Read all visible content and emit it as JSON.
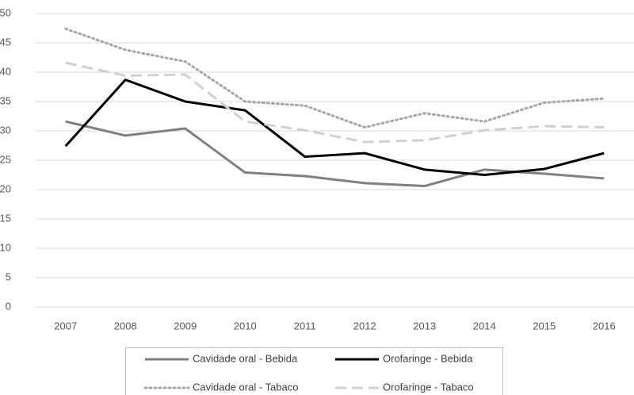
{
  "chart_data": {
    "type": "line",
    "categories": [
      "2007",
      "2008",
      "2009",
      "2010",
      "2011",
      "2012",
      "2013",
      "2014",
      "2015",
      "2016"
    ],
    "series": [
      {
        "name": "Cavidade oral - Bebida",
        "color": "#808080",
        "dash": "solid",
        "values": [
          31.6,
          29.2,
          30.4,
          22.9,
          22.3,
          21.1,
          20.6,
          23.4,
          22.7,
          21.9
        ]
      },
      {
        "name": "Orofaringe - Bebida",
        "color": "#000000",
        "dash": "solid",
        "values": [
          27.4,
          38.7,
          35.0,
          33.5,
          25.6,
          26.2,
          23.4,
          22.5,
          23.5,
          26.2
        ]
      },
      {
        "name": "Cavidade oral - Tabaco",
        "color": "#a6a6a6",
        "dash": "dotted",
        "values": [
          47.4,
          43.8,
          41.8,
          35.0,
          34.3,
          30.6,
          33.0,
          31.6,
          34.8,
          35.5
        ]
      },
      {
        "name": "Orofaringe - Tabaco",
        "color": "#d0d0d0",
        "dash": "dashed",
        "values": [
          41.6,
          39.4,
          39.6,
          31.6,
          30.1,
          28.1,
          28.4,
          30.1,
          30.8,
          30.6
        ]
      }
    ],
    "ylim": [
      0,
      50
    ],
    "yticks": [
      0,
      5,
      10,
      15,
      20,
      25,
      30,
      35,
      40,
      45,
      50
    ],
    "grid": true,
    "legend": "bottom"
  }
}
